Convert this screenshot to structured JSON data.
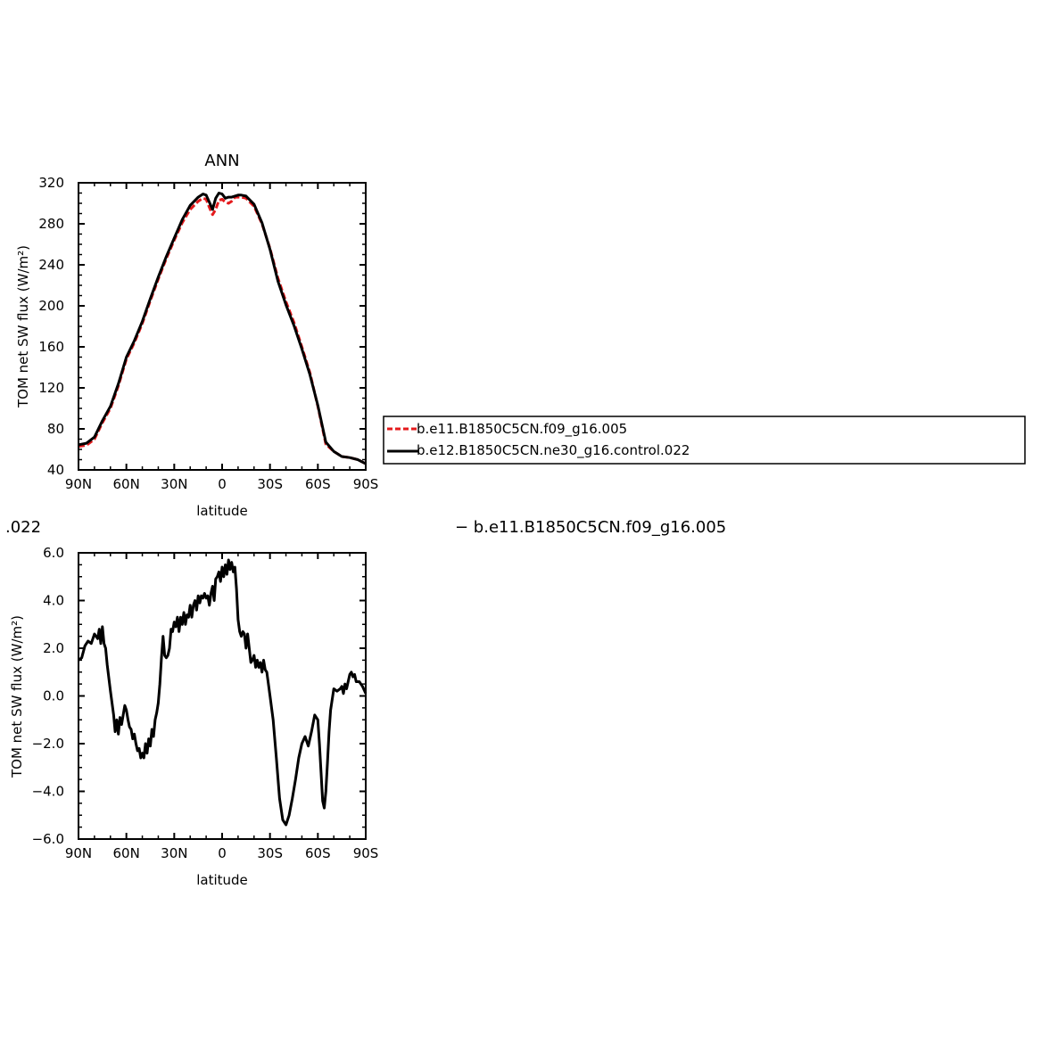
{
  "chart_data": [
    {
      "type": "line",
      "title": "ANN",
      "xlabel": "latitude",
      "ylabel": "TOM net SW flux (W/m²)",
      "xlim": [
        90,
        -90
      ],
      "ylim": [
        40,
        320
      ],
      "x_ticks": [
        90,
        60,
        30,
        0,
        -30,
        -60,
        -90
      ],
      "x_tick_labels": [
        "90N",
        "60N",
        "30N",
        "0",
        "30S",
        "60S",
        "90S"
      ],
      "y_ticks": [
        40,
        80,
        120,
        160,
        200,
        240,
        280,
        320
      ],
      "y_tick_labels": [
        "40",
        "80",
        "120",
        "160",
        "200",
        "240",
        "280",
        "320"
      ],
      "legend_placement": "right",
      "series": [
        {
          "name": "b.e11.B1850C5CN.f09_g16.005",
          "color": "#e41a1c",
          "dash": "dashed",
          "x": [
            90,
            85,
            80,
            75,
            70,
            65,
            60,
            55,
            50,
            45,
            40,
            35,
            30,
            25,
            20,
            15,
            12,
            10,
            8,
            6,
            4,
            2,
            0,
            -2,
            -4,
            -6,
            -8,
            -10,
            -12,
            -15,
            -20,
            -25,
            -30,
            -35,
            -40,
            -45,
            -50,
            -55,
            -60,
            -65,
            -70,
            -75,
            -80,
            -85,
            -90
          ],
          "y": [
            63,
            64,
            70,
            86,
            100,
            122,
            148,
            164,
            183,
            205,
            226,
            246,
            264,
            281,
            294,
            302,
            305,
            304,
            296,
            289,
            294,
            303,
            304,
            301,
            300,
            302,
            306,
            306,
            306,
            305,
            297,
            280,
            256,
            227,
            204,
            184,
            160,
            135,
            102,
            65,
            58,
            53,
            52,
            50,
            46
          ]
        },
        {
          "name": "b.e12.B1850C5CN.ne30_g16.control.022",
          "color": "#000000",
          "dash": "solid",
          "x": [
            90,
            85,
            80,
            75,
            70,
            65,
            60,
            55,
            50,
            45,
            40,
            35,
            30,
            25,
            20,
            15,
            12,
            10,
            8,
            6,
            4,
            2,
            0,
            -2,
            -4,
            -6,
            -8,
            -10,
            -12,
            -15,
            -20,
            -25,
            -30,
            -35,
            -40,
            -45,
            -50,
            -55,
            -60,
            -65,
            -70,
            -75,
            -80,
            -85,
            -90
          ],
          "y": [
            64.5,
            66,
            72,
            88,
            102,
            124,
            150,
            166,
            185,
            207,
            228,
            248,
            266,
            284,
            298,
            306,
            309,
            308,
            301,
            294,
            305,
            310,
            309,
            305,
            306,
            306,
            307,
            308,
            308,
            307,
            299,
            281,
            255,
            224,
            201,
            181,
            158,
            133,
            103,
            67,
            58,
            53,
            52,
            50,
            46
          ]
        }
      ]
    },
    {
      "type": "line",
      "title": ".022",
      "subtitle": "− b.e11.B1850C5CN.f09_g16.005",
      "xlabel": "latitude",
      "ylabel": "TOM net SW flux (W/m²)",
      "xlim": [
        90,
        -90
      ],
      "ylim": [
        -6,
        6
      ],
      "x_ticks": [
        90,
        60,
        30,
        0,
        -30,
        -60,
        -90
      ],
      "x_tick_labels": [
        "90N",
        "60N",
        "30N",
        "0",
        "30S",
        "60S",
        "90S"
      ],
      "y_ticks": [
        6,
        4,
        2,
        0,
        -2,
        -4,
        -6
      ],
      "y_tick_labels": [
        "6.0",
        "4.0",
        "2.0",
        "0.0",
        "−2.0",
        "−4.0",
        "−6.0"
      ],
      "series": [
        {
          "color": "#000000",
          "dash": "solid",
          "x": [
            90,
            88,
            86,
            84,
            82,
            80,
            78,
            77,
            76,
            75,
            74,
            73,
            72,
            70,
            68,
            67,
            66,
            65,
            64,
            63,
            62,
            61,
            60,
            59,
            58,
            57,
            56,
            55,
            54,
            53,
            52,
            51,
            50,
            49,
            48,
            47,
            46,
            45,
            44,
            43,
            42,
            41,
            40,
            39,
            38,
            37,
            36,
            35,
            34,
            33,
            32,
            31,
            30,
            29,
            28,
            27,
            26,
            25,
            24,
            23,
            22,
            21,
            20,
            19,
            18,
            17,
            16,
            15,
            14,
            13,
            12,
            11,
            10,
            9,
            8,
            7,
            6,
            5,
            4,
            3,
            2,
            1,
            0,
            -1,
            -2,
            -3,
            -4,
            -5,
            -6,
            -7,
            -8,
            -9,
            -10,
            -11,
            -12,
            -13,
            -14,
            -15,
            -16,
            -17,
            -18,
            -19,
            -20,
            -21,
            -22,
            -23,
            -24,
            -25,
            -26,
            -27,
            -28,
            -30,
            -32,
            -34,
            -36,
            -38,
            -40,
            -42,
            -44,
            -46,
            -48,
            -50,
            -52,
            -54,
            -56,
            -58,
            -60,
            -61,
            -62,
            -63,
            -64,
            -65,
            -66,
            -67,
            -68,
            -70,
            -72,
            -74,
            -75,
            -76,
            -77,
            -78,
            -79,
            -80,
            -81,
            -82,
            -83,
            -84,
            -86,
            -88,
            -90
          ],
          "y": [
            1.5,
            1.6,
            2.1,
            2.3,
            2.2,
            2.6,
            2.4,
            2.8,
            2.2,
            2.9,
            2.2,
            2.0,
            1.3,
            0.2,
            -0.8,
            -1.5,
            -1.0,
            -1.6,
            -0.9,
            -1.2,
            -0.8,
            -0.4,
            -0.6,
            -1.0,
            -1.3,
            -1.4,
            -1.8,
            -1.6,
            -2.0,
            -2.3,
            -2.2,
            -2.6,
            -2.4,
            -2.6,
            -2.0,
            -2.4,
            -1.8,
            -2.1,
            -1.4,
            -1.7,
            -1.0,
            -0.7,
            -0.3,
            0.5,
            1.6,
            2.5,
            1.7,
            1.6,
            1.7,
            2.0,
            2.8,
            2.7,
            3.1,
            2.9,
            3.3,
            2.7,
            3.3,
            3.0,
            3.5,
            3.0,
            3.4,
            3.3,
            3.8,
            3.3,
            3.8,
            4.0,
            3.6,
            4.2,
            3.9,
            4.2,
            4.1,
            4.3,
            4.1,
            4.2,
            3.8,
            4.3,
            4.6,
            4.0,
            4.9,
            5.0,
            5.2,
            4.8,
            5.4,
            5.0,
            5.5,
            5.1,
            5.7,
            5.3,
            5.6,
            5.2,
            5.4,
            4.5,
            3.2,
            2.7,
            2.5,
            2.7,
            2.6,
            2.0,
            2.6,
            2.0,
            1.4,
            1.5,
            1.7,
            1.2,
            1.5,
            1.2,
            1.4,
            1.0,
            1.5,
            1.1,
            1.0,
            0.0,
            -1.0,
            -2.6,
            -4.3,
            -5.2,
            -5.4,
            -5.0,
            -4.3,
            -3.5,
            -2.6,
            -2.0,
            -1.7,
            -2.1,
            -1.5,
            -0.8,
            -1.0,
            -2.0,
            -3.2,
            -4.4,
            -4.7,
            -4.0,
            -2.8,
            -1.5,
            -0.6,
            0.3,
            0.2,
            0.3,
            0.4,
            0.1,
            0.5,
            0.3,
            0.6,
            0.9,
            1.0,
            0.8,
            0.9,
            0.6,
            0.6,
            0.4,
            0.1
          ]
        }
      ]
    }
  ]
}
